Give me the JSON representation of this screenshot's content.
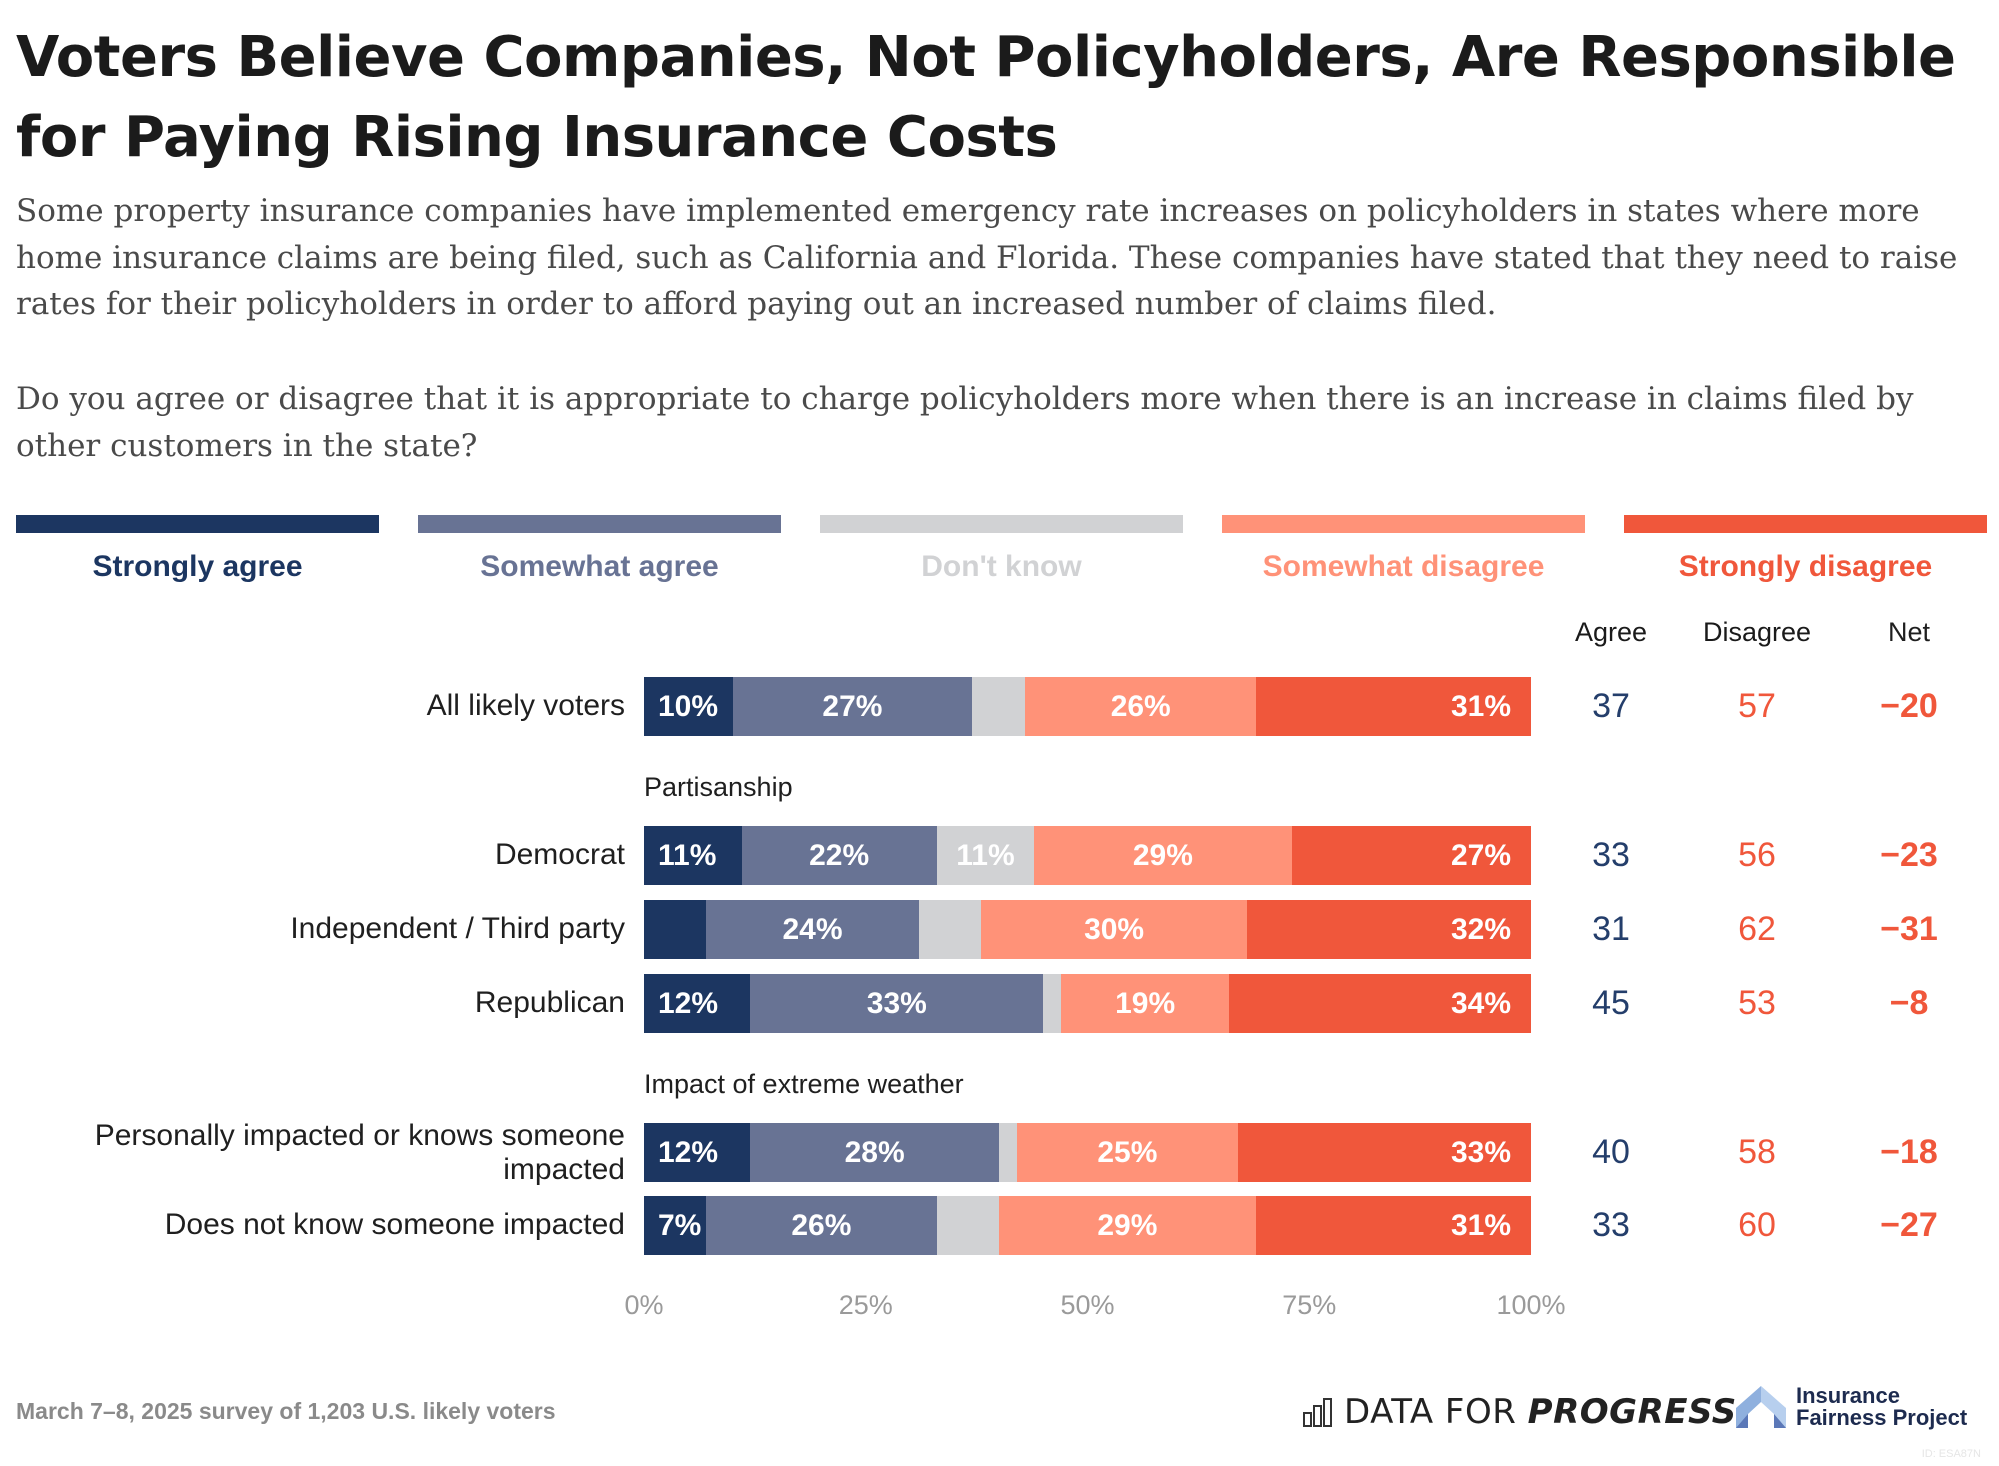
{
  "title": "Voters Believe Companies, Not Policyholders, Are Responsible for Paying Rising Insurance Costs",
  "subtitle": "Some property insurance companies have implemented emergency rate increases on policyholders in states where more home insurance claims are being filed, such as California and Florida. These companies have stated that they need to raise rates for their policyholders in order to afford paying out an increased number of claims filed.",
  "question": "Do you agree or disagree that it is appropriate to charge policyholders more when there is an increase in claims filed by other customers in the state?",
  "colors": {
    "strongly_agree": "#1c3661",
    "somewhat_agree": "#687394",
    "dont_know": "#d1d2d4",
    "somewhat_disagree": "#ff9278",
    "strongly_disagree": "#f0573b",
    "agree_text": "#243e6b",
    "disagree_text": "#f0573b",
    "net_text": "#f0573b"
  },
  "columns": {
    "agree": "Agree",
    "disagree": "Disagree",
    "net": "Net"
  },
  "footer": {
    "note": "March 7–8, 2025 survey of 1,203 U.S. likely voters",
    "dfp_logo_light": "DATA FOR",
    "dfp_logo_bold": "PROGRESS",
    "ifp_logo_line1": "Insurance",
    "ifp_logo_line2": "Fairness Project",
    "watermark": "ID: ESA87N"
  },
  "chart_data": {
    "type": "bar",
    "orientation": "horizontal-stacked",
    "title": "Voters Believe Companies, Not Policyholders, Are Responsible for Paying Rising Insurance Costs",
    "xlabel": "",
    "ylabel": "",
    "xlim": [
      0,
      100
    ],
    "x_ticks": [
      "0%",
      "25%",
      "50%",
      "75%",
      "100%"
    ],
    "legend_position": "top",
    "legend": [
      "Strongly agree",
      "Somewhat agree",
      "Don't know",
      "Somewhat disagree",
      "Strongly disagree"
    ],
    "groups": [
      {
        "label": "",
        "rows": [
          0
        ]
      },
      {
        "label": "Partisanship",
        "rows": [
          1,
          2,
          3
        ]
      },
      {
        "label": "Impact of extreme weather",
        "rows": [
          4,
          5
        ]
      }
    ],
    "categories": [
      "All likely voters",
      "Democrat",
      "Independent / Third party",
      "Republican",
      "Personally impacted or knows someone impacted",
      "Does not know someone impacted"
    ],
    "series": [
      {
        "name": "Strongly agree",
        "values": [
          10,
          11,
          7,
          12,
          12,
          7
        ],
        "labels": [
          "10%",
          "11%",
          "",
          "12%",
          "12%",
          "7%"
        ]
      },
      {
        "name": "Somewhat agree",
        "values": [
          27,
          22,
          24,
          33,
          28,
          26
        ],
        "labels": [
          "27%",
          "22%",
          "24%",
          "33%",
          "28%",
          "26%"
        ]
      },
      {
        "name": "Don't know",
        "values": [
          6,
          11,
          7,
          2,
          2,
          7
        ],
        "labels": [
          "",
          "11%",
          "",
          "",
          "",
          ""
        ]
      },
      {
        "name": "Somewhat disagree",
        "values": [
          26,
          29,
          30,
          19,
          25,
          29
        ],
        "labels": [
          "26%",
          "29%",
          "30%",
          "19%",
          "25%",
          "29%"
        ]
      },
      {
        "name": "Strongly disagree",
        "values": [
          31,
          27,
          32,
          34,
          33,
          31
        ],
        "labels": [
          "31%",
          "27%",
          "32%",
          "34%",
          "33%",
          "31%"
        ]
      }
    ],
    "summary": [
      {
        "agree": "37",
        "disagree": "57",
        "net": "−20"
      },
      {
        "agree": "33",
        "disagree": "56",
        "net": "−23"
      },
      {
        "agree": "31",
        "disagree": "62",
        "net": "−31"
      },
      {
        "agree": "45",
        "disagree": "53",
        "net": "−8"
      },
      {
        "agree": "40",
        "disagree": "58",
        "net": "−18"
      },
      {
        "agree": "33",
        "disagree": "60",
        "net": "−27"
      }
    ]
  }
}
